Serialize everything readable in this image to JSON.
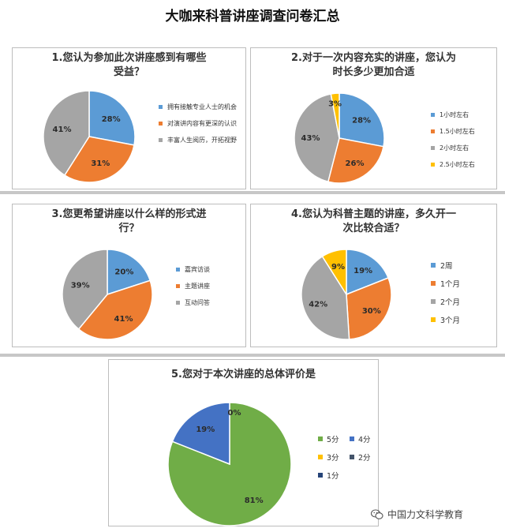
{
  "page": {
    "title": "大咖来科普讲座调查问卷汇总"
  },
  "watermark": {
    "text": "中国力文科学教育"
  },
  "chart_data": [
    {
      "type": "pie",
      "title_lines": [
        "1.您认为参加此次讲座感到有哪些",
        "受益？"
      ],
      "categories": [
        "拥有接触专业人士的机会",
        "对演讲内容有更深的认识",
        "丰富人生阅历，开拓视野"
      ],
      "values": [
        28,
        31,
        41
      ],
      "labels": [
        "28%",
        "31%",
        "41%"
      ],
      "colors": [
        "#5b9bd5",
        "#ed7d31",
        "#a5a5a5"
      ],
      "legend": "right"
    },
    {
      "type": "pie",
      "title_lines": [
        "2.对于一次内容充实的讲座，您认为",
        "时长多少更加合适"
      ],
      "categories": [
        "1小时左右",
        "1.5小时左右",
        "2小时左右",
        "2.5小时左右"
      ],
      "values": [
        28,
        26,
        43,
        3
      ],
      "labels": [
        "28%",
        "26%",
        "43%",
        "3%"
      ],
      "colors": [
        "#5b9bd5",
        "#ed7d31",
        "#a5a5a5",
        "#ffc000"
      ],
      "legend": "right"
    },
    {
      "type": "pie",
      "title_lines": [
        "3.您更希望讲座以什么样的形式进",
        "行？"
      ],
      "categories": [
        "嘉宾访谈",
        "主题讲座",
        "互动问答"
      ],
      "values": [
        20,
        41,
        39
      ],
      "labels": [
        "20%",
        "41%",
        "39%"
      ],
      "colors": [
        "#5b9bd5",
        "#ed7d31",
        "#a5a5a5"
      ],
      "legend": "right"
    },
    {
      "type": "pie",
      "title_lines": [
        "4.您认为科普主题的讲座，多久开一",
        "次比较合适？"
      ],
      "categories": [
        "2周",
        "1个月",
        "2个月",
        "3个月"
      ],
      "values": [
        19,
        30,
        42,
        9
      ],
      "labels": [
        "19%",
        "30%",
        "42%",
        "9%"
      ],
      "colors": [
        "#5b9bd5",
        "#ed7d31",
        "#a5a5a5",
        "#ffc000"
      ],
      "legend": "right"
    },
    {
      "type": "pie",
      "title_lines": [
        "5.您对于本次讲座的总体评价是"
      ],
      "categories": [
        "5分",
        "4分",
        "3分",
        "2分",
        "1分"
      ],
      "values": [
        81,
        19,
        0,
        0,
        0
      ],
      "labels": [
        "81%",
        "19%",
        "0%"
      ],
      "colors": [
        "#70ad47",
        "#4472c4",
        "#ffc000",
        "#44546a",
        "#264478"
      ],
      "legend": "right"
    }
  ]
}
